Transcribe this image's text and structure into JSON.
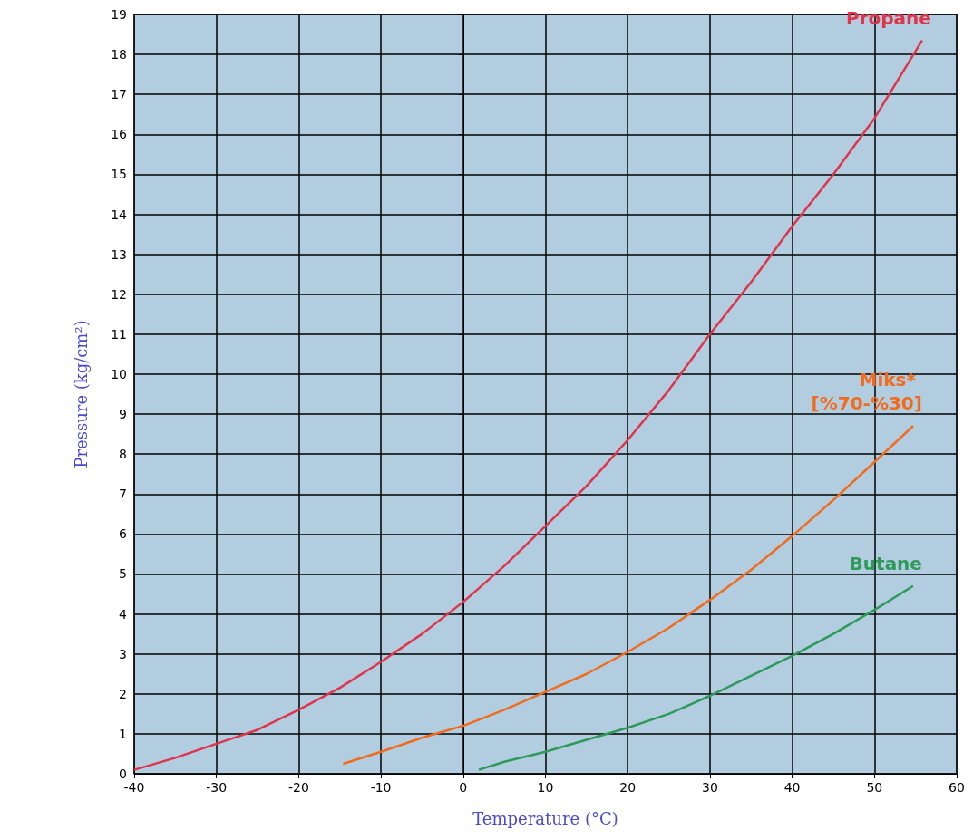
{
  "chart_data": {
    "type": "line",
    "xlabel": "Temperature (°C)",
    "ylabel": "Pressure (kg/cm²)",
    "xlim": [
      -40,
      60
    ],
    "xticks": [
      -40,
      -30,
      -20,
      -10,
      0,
      10,
      20,
      30,
      40,
      50,
      60
    ],
    "ylim": [
      0,
      19
    ],
    "yticks": [
      0,
      1,
      2,
      3,
      4,
      5,
      6,
      7,
      8,
      9,
      10,
      11,
      12,
      13,
      14,
      15,
      16,
      17,
      18,
      19
    ],
    "grid": true,
    "legend": false,
    "marker": "none",
    "line_style": "solid",
    "series": [
      {
        "name": "Propane",
        "color": "#e0344a",
        "x": [
          -40,
          -35,
          -30,
          -25,
          -20,
          -15,
          -10,
          -5,
          0,
          5,
          10,
          15,
          20,
          25,
          30,
          35,
          40,
          45,
          50,
          55.8
        ],
        "values": [
          0.1,
          0.4,
          0.75,
          1.1,
          1.6,
          2.15,
          2.8,
          3.5,
          4.3,
          5.2,
          6.2,
          7.2,
          8.35,
          9.6,
          11.0,
          12.3,
          13.7,
          15.0,
          16.4,
          18.35
        ]
      },
      {
        "name": "Miks* [%70-%30]",
        "color": "#f26b1d",
        "x": [
          -14.6,
          -10,
          -5,
          0,
          5,
          10,
          15,
          20,
          25,
          30,
          35,
          40,
          45,
          50,
          54.7
        ],
        "values": [
          0.25,
          0.55,
          0.9,
          1.2,
          1.6,
          2.05,
          2.5,
          3.05,
          3.65,
          4.35,
          5.1,
          5.95,
          6.85,
          7.8,
          8.7
        ]
      },
      {
        "name": "Butane",
        "color": "#2e9a5a",
        "x": [
          1.9,
          5,
          10,
          15,
          20,
          25,
          30,
          35,
          40,
          45,
          50,
          54.7
        ],
        "values": [
          0.1,
          0.3,
          0.55,
          0.85,
          1.15,
          1.5,
          1.95,
          2.45,
          2.95,
          3.5,
          4.1,
          4.7
        ]
      }
    ]
  }
}
